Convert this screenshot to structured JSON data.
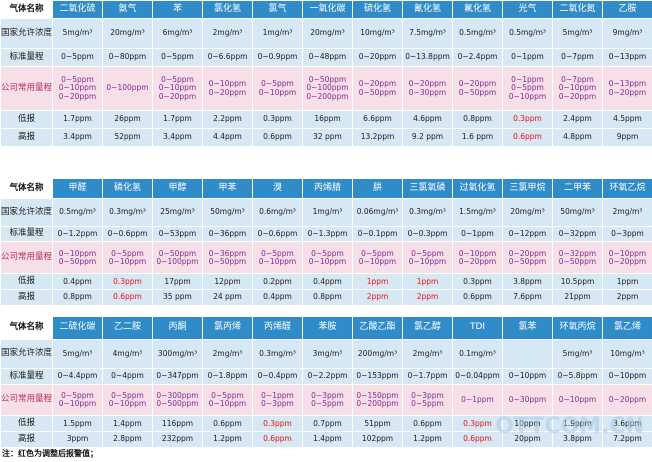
{
  "sections": [
    {
      "id": "s1",
      "headers": [
        "气体名称",
        "二氧化硫",
        "氨气",
        "苯",
        "氯化氢",
        "氯气",
        "一氧化碳",
        "硫化氢",
        "氰化氢",
        "氟化氢",
        "光气",
        "二氧化氮",
        "乙胺"
      ],
      "rows": [
        {
          "type": "blue",
          "cells": [
            "国家允许浓度",
            "5mg/m³",
            "20mg/m³",
            "6mg/m³",
            "2mg/m³",
            "1mg/m³",
            "20mg/m³",
            "10mg/m³",
            "7.5mg/m³",
            "0.5mg/m³",
            "0.5mg/m³",
            "5mg/m³",
            "9mg/m³"
          ]
        },
        {
          "type": "blue",
          "cells": [
            "标准量程",
            "0~5ppm",
            "0~80ppm",
            "0~5ppm",
            "0~6.6ppm",
            "0~0.9ppm",
            "0~48ppm",
            "0~20ppm",
            "0~13.8ppm",
            "0~2.4ppm",
            "0~1ppm",
            "0~7ppm",
            "0~13ppm"
          ]
        },
        {
          "type": "pink",
          "cells": [
            "公司常用量程",
            [
              "0~5ppm",
              "0~10ppm",
              "0~20ppm"
            ],
            [
              "0~100ppm"
            ],
            [
              "0~5ppm",
              "0~10ppm",
              "0~20ppm"
            ],
            [
              "0~10ppm",
              "0~20ppm"
            ],
            [
              "0~5ppm",
              "0~10ppm"
            ],
            [
              "0~50ppm",
              "0~100ppm",
              "0~200ppm"
            ],
            [
              "0~20ppm",
              "0~50ppm"
            ],
            [
              "0~20ppm",
              "0~30ppm"
            ],
            [
              "0~20ppm",
              "0~50ppm"
            ],
            [
              "0~1ppm",
              "0~5ppm",
              "0~10ppm"
            ],
            [
              "0~7ppm",
              "0~10ppm",
              "0~20ppm"
            ],
            [
              "0~13ppm",
              "0~20ppm"
            ]
          ]
        },
        {
          "type": "blue",
          "cells": [
            "低报",
            "1.7ppm",
            "26ppm",
            "1.7ppm",
            "2.2ppm",
            "0.3ppm",
            "16ppm",
            "6.6ppm",
            "4.6ppm",
            "0.8ppm",
            "0.3ppm",
            "2.4ppm",
            "4.5ppm"
          ],
          "red": [
            10
          ]
        },
        {
          "type": "blue",
          "cells": [
            "高报",
            "3.4ppm",
            "52ppm",
            "3.4ppm",
            "4.4ppm",
            "0.6ppm",
            "32 ppm",
            "13.2ppm",
            "9.2 ppm",
            "1.6 ppm",
            "0.6ppm",
            "4.8ppm",
            "9ppm"
          ],
          "red": [
            10
          ]
        }
      ]
    },
    {
      "id": "s2",
      "headers": [
        "气体名称",
        "甲醛",
        "磷化氢",
        "甲醇",
        "甲苯",
        "溴",
        "丙烯腈",
        "肼",
        "三氯氧磷",
        "过氧化氢",
        "三氯甲烷",
        "二甲苯",
        "环氧乙烷"
      ],
      "rows": [
        {
          "type": "blue",
          "cells": [
            "国家允许浓度",
            "0.5mg/m³",
            "0.3mg/m³",
            "25mg/m³",
            "50mg/m³",
            "0.6mg/m³",
            "1mg/m³",
            "0.06mg/m³",
            "0.3mg/m³",
            "1.5mg/m³",
            "20mg/m³",
            "50mg/m³",
            "2mg/m³"
          ]
        },
        {
          "type": "blue",
          "cells": [
            "标准量程",
            "0~1.2ppm",
            "0~0.6ppm",
            "0~53ppm",
            "0~36ppm",
            "0~0.6ppm",
            "0~1.3ppm",
            "0~0.1ppm",
            "0~0.3ppm",
            "0~1ppm",
            "0~12ppm",
            "0~32ppm",
            "0~3ppm"
          ]
        },
        {
          "type": "pink",
          "cells": [
            "公司常用量程",
            [
              "0~10ppm",
              "0~50ppm"
            ],
            [
              "0~5ppm",
              "0~10ppm"
            ],
            [
              "0~50ppm",
              "0~100ppm"
            ],
            [
              "0~36ppm",
              "0~50ppm"
            ],
            [
              "0~5ppm",
              "0~10ppm"
            ],
            [
              "0~5ppm",
              "0~10ppm"
            ],
            [
              "0~5ppm",
              "0~10ppm"
            ],
            [
              "0~5ppm",
              "0~10ppm"
            ],
            [
              "0~10ppm",
              "0~20ppm"
            ],
            [
              "0~20ppm",
              "0~50ppm"
            ],
            [
              "0~32ppm",
              "0~50ppm"
            ],
            [
              "0~10ppm",
              "0~20ppm"
            ]
          ]
        },
        {
          "type": "blue",
          "cells": [
            "低报",
            "0.4ppm",
            "0.3ppm",
            "17ppm",
            "12ppm",
            "0.2ppm",
            "0.4ppm",
            "1ppm",
            "1ppm",
            "0.3ppm",
            "3.8ppm",
            "10.5ppm",
            "1ppm"
          ],
          "red": [
            2,
            7,
            8
          ]
        },
        {
          "type": "blue",
          "cells": [
            "高报",
            "0.8ppm",
            "0.6ppm",
            "35 ppm",
            "24 ppm",
            "0.4ppm",
            "0.8ppm",
            "2ppm",
            "2ppm",
            "0.6ppm",
            "7.6ppm",
            "21ppm",
            "2ppm"
          ],
          "red": [
            2,
            7,
            8
          ]
        }
      ]
    },
    {
      "id": "s3",
      "headers": [
        "气体名称",
        "二硫化碳",
        "乙二胺",
        "丙酮",
        "氯丙烯",
        "丙烯醛",
        "苯胺",
        "乙酸乙酯",
        "氯乙醇",
        "TDI",
        "氯苯",
        "环氧丙烷",
        "氯乙烯"
      ],
      "rows": [
        {
          "type": "blue",
          "cells": [
            "国家允许浓度",
            "5mg/m³",
            "4mg/m³",
            "300mg/m³",
            "2mg/m³",
            "0.3mg/m³",
            "3mg/m³",
            "200mg/m³",
            "2mg/m³",
            "0.1mg/m³",
            "",
            "5mg/m³",
            "10mg/m³"
          ]
        },
        {
          "type": "blue",
          "cells": [
            "标准量程",
            "0~4.4ppm",
            "0~4ppm",
            "0~347ppm",
            "0~1.8ppm",
            "0~0.4ppm",
            "0~2.2ppm",
            "0~153ppm",
            "0~1.7ppm",
            "0~0.04ppm",
            "0~10ppm",
            "0~5.8ppm",
            "0~10ppm"
          ]
        },
        {
          "type": "pink",
          "cells": [
            "公司常用量程",
            [
              "0~5ppm",
              "0~10ppm"
            ],
            [
              "0~5ppm",
              "0~10ppm"
            ],
            [
              "0~300ppm",
              "0~500ppm"
            ],
            [
              "0~5ppm",
              "0~10ppm"
            ],
            [
              "0~1ppm",
              "0~3ppm"
            ],
            [
              "0~3ppm",
              "0~5ppm"
            ],
            [
              "0~150ppm",
              "0~200ppm"
            ],
            [
              "0~3ppm",
              "0~5ppm"
            ],
            [
              "0~1ppm"
            ],
            [
              "0~30ppm"
            ],
            [
              "0~10ppm"
            ],
            [
              "0~20ppm"
            ]
          ]
        },
        {
          "type": "blue",
          "cells": [
            "低报",
            "1.5ppm",
            "1.4ppm",
            "116ppm",
            "0.6ppm",
            "0.3ppm",
            "0.7ppm",
            "51ppm",
            "0.6ppm",
            "0.3ppm",
            "10ppm",
            "1.9ppm",
            "3.6ppm"
          ],
          "red": [
            5,
            9
          ]
        },
        {
          "type": "blue",
          "cells": [
            "高报",
            "3ppm",
            "2.8ppm",
            "232ppm",
            "1.2ppm",
            "0.6ppm",
            "1.4ppm",
            "102ppm",
            "1.2ppm",
            "0.6ppm",
            "20ppm",
            "3.8ppm",
            "7.2ppm"
          ],
          "red": [
            5,
            9
          ]
        }
      ]
    }
  ],
  "note": "注：红色为调整后报警值；",
  "watermark": "OTTCOM.CN",
  "colors": {
    "header": "#2f8cc9",
    "row_blue": "#d7e8f5",
    "row_pink": "#f6dfe6",
    "alarm_red": "#ee1111"
  }
}
